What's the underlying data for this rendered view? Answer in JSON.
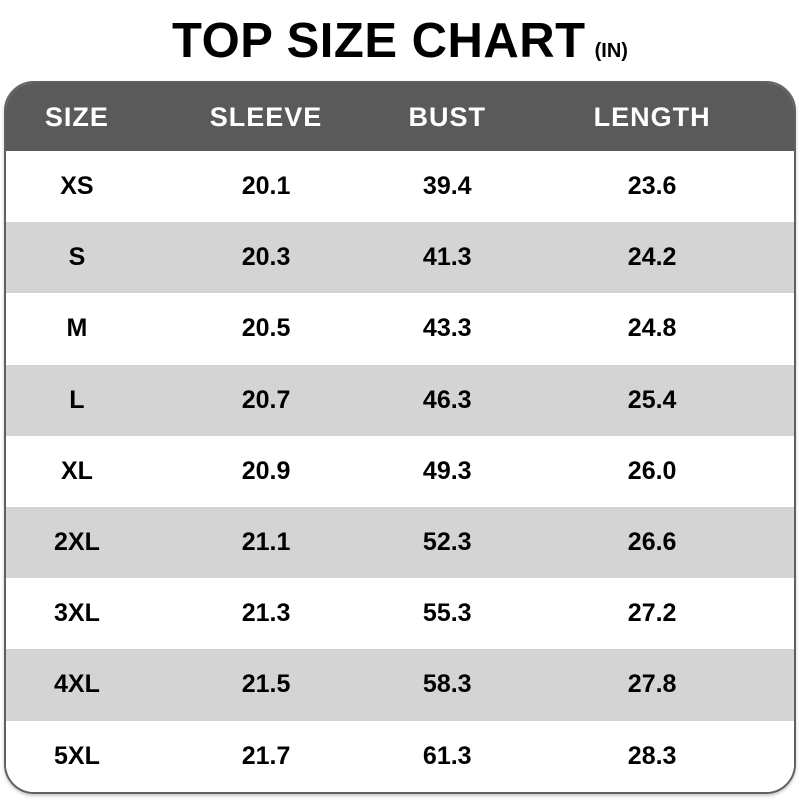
{
  "title": {
    "main": "TOP SIZE CHART",
    "unit": "(IN)"
  },
  "chart_data": {
    "type": "table",
    "title": "TOP SIZE CHART",
    "unit_label": "(IN)",
    "columns": [
      "SIZE",
      "SLEEVE",
      "BUST",
      "LENGTH"
    ],
    "rows": [
      [
        "XS",
        "20.1",
        "39.4",
        "23.6"
      ],
      [
        "S",
        "20.3",
        "41.3",
        "24.2"
      ],
      [
        "M",
        "20.5",
        "43.3",
        "24.8"
      ],
      [
        "L",
        "20.7",
        "46.3",
        "25.4"
      ],
      [
        "XL",
        "20.9",
        "49.3",
        "26.0"
      ],
      [
        "2XL",
        "21.1",
        "52.3",
        "26.6"
      ],
      [
        "3XL",
        "21.3",
        "55.3",
        "27.2"
      ],
      [
        "4XL",
        "21.5",
        "58.3",
        "27.8"
      ],
      [
        "5XL",
        "21.7",
        "61.3",
        "28.3"
      ]
    ],
    "layout": {
      "striped_rows": "alternating, starting white",
      "legend": "none",
      "grid": "off"
    }
  },
  "colors": {
    "header_bg": "#5a5a5a",
    "header_text": "#ffffff",
    "row_stripe": "#d4d4d4",
    "row_bg": "#ffffff",
    "table_border": "#606060",
    "text": "#000000"
  }
}
